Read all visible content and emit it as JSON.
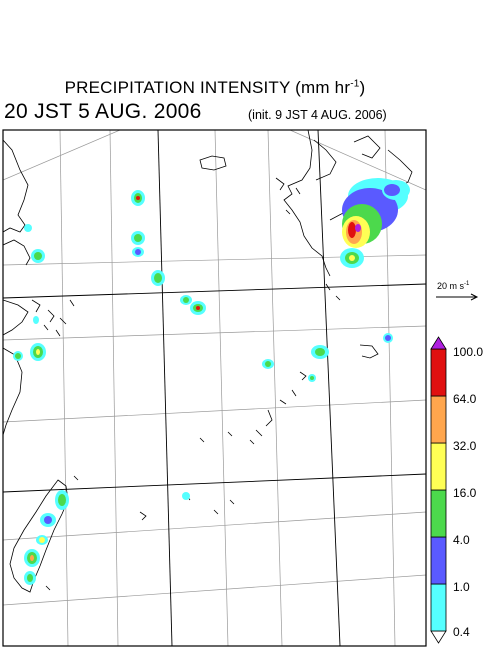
{
  "title": {
    "text": "PRECIPITATION INTENSITY (mm hr",
    "unit_exponent": "-1",
    "close": ")"
  },
  "valid_time": "20 JST 5 AUG. 2006",
  "init_time": "(init. 9 JST 4 AUG. 2006)",
  "wind_scale": {
    "text": "20 m s",
    "exponent": "-1"
  },
  "legend": {
    "colors": [
      "#55ffff",
      "#5a5aff",
      "#4cd94c",
      "#ffff55",
      "#ffa64d",
      "#e01010",
      "#b020e0"
    ],
    "labels": [
      "0.4",
      "1.0",
      "4.0",
      "16.0",
      "32.0",
      "64.0",
      "100.0"
    ]
  }
}
